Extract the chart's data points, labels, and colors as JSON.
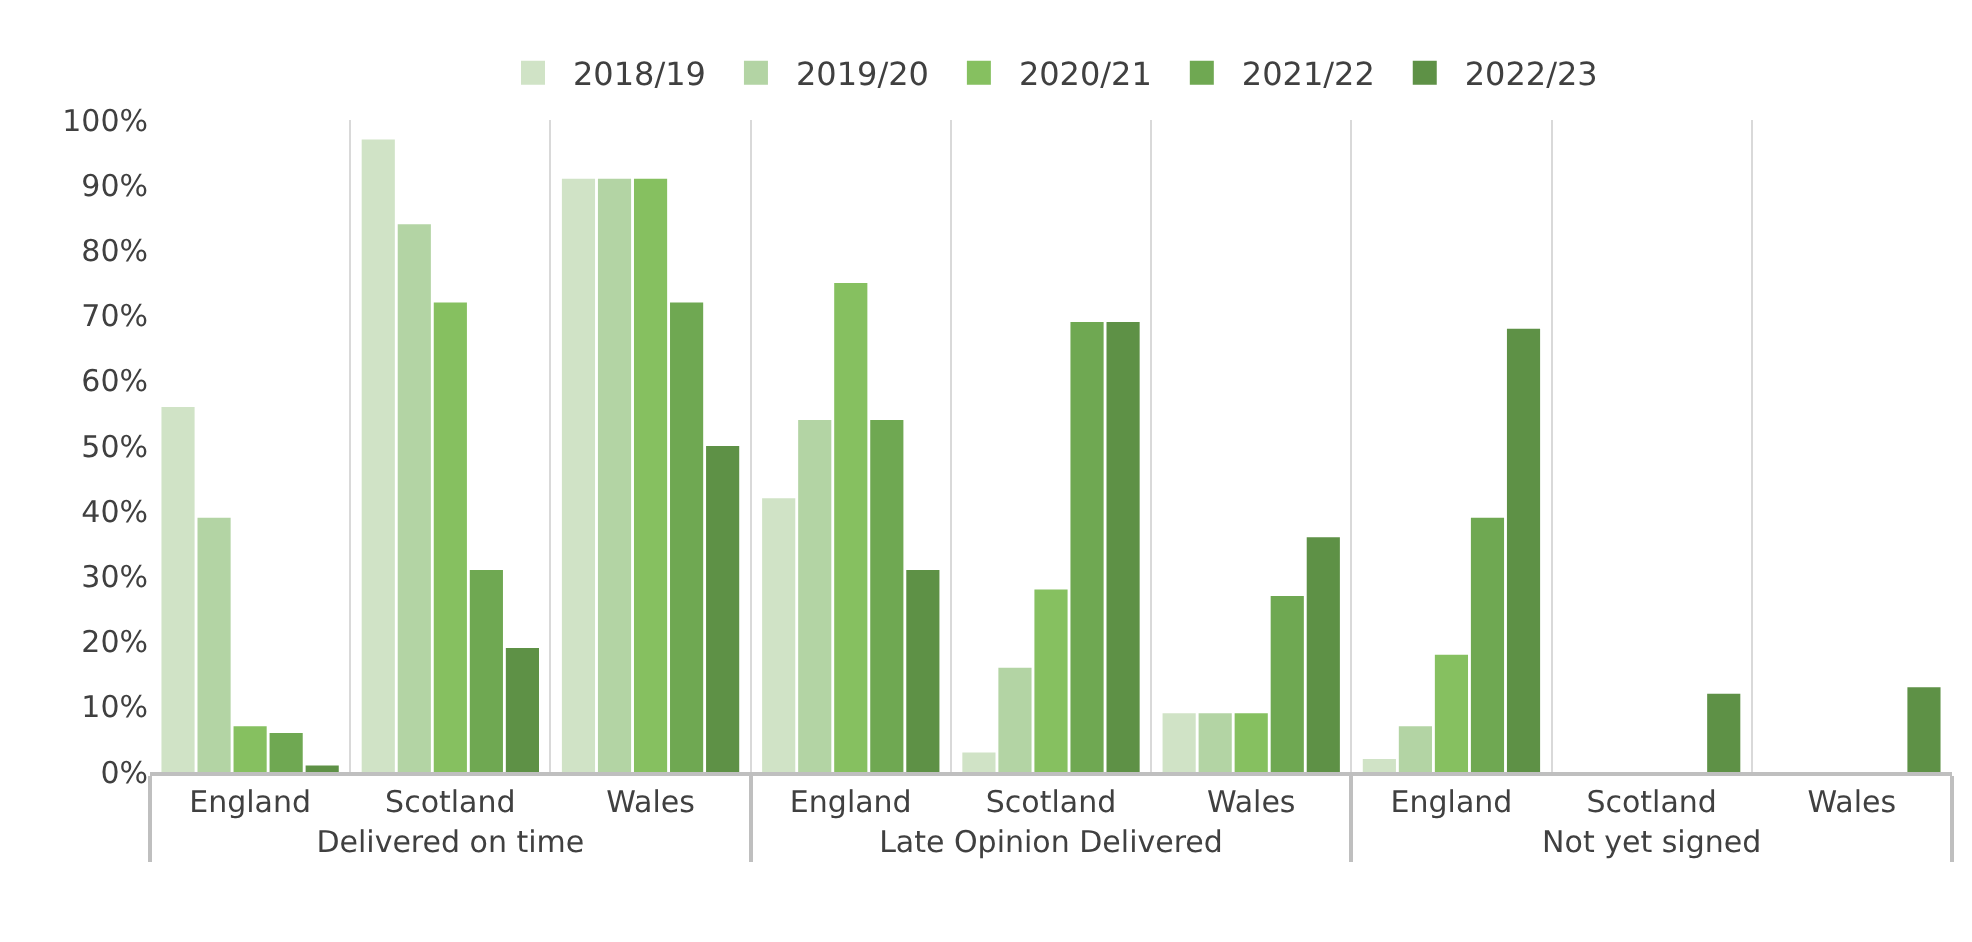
{
  "chart_data": {
    "type": "bar",
    "categories": [
      "England",
      "Scotland",
      "Wales",
      "England",
      "Scotland",
      "Wales",
      "England",
      "Scotland",
      "Wales"
    ],
    "annotations": [
      "Delivered on time",
      "Late Opinion Delivered",
      "Not yet signed"
    ],
    "series": [
      {
        "name": "2018/19",
        "color": "#d0e3c6",
        "values": [
          56,
          97,
          91,
          42,
          3,
          9,
          2,
          0,
          0
        ]
      },
      {
        "name": "2019/20",
        "color": "#b3d4a4",
        "values": [
          39,
          84,
          91,
          54,
          16,
          9,
          7,
          0,
          0
        ]
      },
      {
        "name": "2020/21",
        "color": "#86c060",
        "values": [
          7,
          72,
          91,
          75,
          28,
          9,
          18,
          0,
          0
        ]
      },
      {
        "name": "2021/22",
        "color": "#6fa852",
        "values": [
          6,
          31,
          72,
          54,
          69,
          27,
          39,
          0,
          0
        ]
      },
      {
        "name": "2022/23",
        "color": "#5e9146",
        "values": [
          1,
          19,
          50,
          31,
          69,
          36,
          68,
          12,
          13
        ]
      }
    ],
    "ylim": [
      0,
      100
    ],
    "yticks": [
      {
        "value": 0,
        "label": "0%"
      },
      {
        "value": 10,
        "label": "10%"
      },
      {
        "value": 20,
        "label": "20%"
      },
      {
        "value": 30,
        "label": "30%"
      },
      {
        "value": 40,
        "label": "40%"
      },
      {
        "value": 50,
        "label": "50%"
      },
      {
        "value": 60,
        "label": "60%"
      },
      {
        "value": 70,
        "label": "70%"
      },
      {
        "value": 80,
        "label": "80%"
      },
      {
        "value": 90,
        "label": "90%"
      },
      {
        "value": 100,
        "label": "100%"
      }
    ],
    "grid": "x",
    "legend": "top"
  }
}
